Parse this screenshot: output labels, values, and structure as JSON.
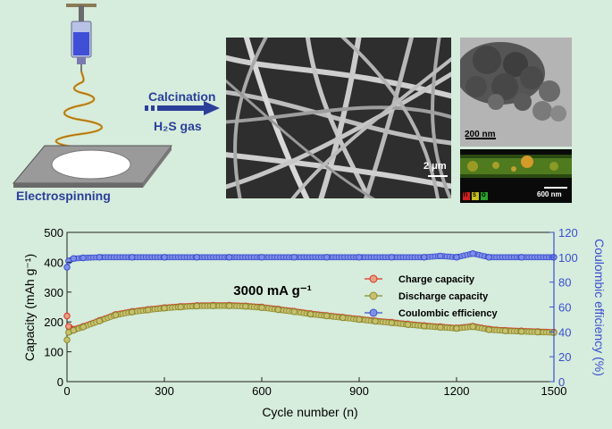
{
  "schematic": {
    "process_label": "Electrospinning",
    "arrow_label_top": "Calcination",
    "arrow_label_bottom": "H₂S gas"
  },
  "micrographs": {
    "sem_scale": "2 μm",
    "tem_scale": "200 nm",
    "eds_scale": "600 nm",
    "eds_elements": [
      "Ti",
      "S",
      "O"
    ]
  },
  "colors": {
    "background": "#d6ecdc",
    "label_blue": "#2b3f9a",
    "charge": "#d9332b",
    "discharge": "#8a8a2a",
    "coulombic": "#3a4fd0"
  },
  "chart_data": {
    "type": "line",
    "annotation": "3000 mA g⁻¹",
    "xlabel": "Cycle number (n)",
    "ylabel": "Capacity (mAh g⁻¹)",
    "y2label": "Coulombic efficiency (%)",
    "xlim": [
      0,
      1500
    ],
    "ylim": [
      0,
      500
    ],
    "y2lim": [
      0,
      120
    ],
    "xticks": [
      0,
      300,
      600,
      900,
      1200,
      1500
    ],
    "yticks": [
      0,
      100,
      200,
      300,
      400,
      500
    ],
    "y2ticks": [
      0,
      20,
      40,
      60,
      80,
      100,
      120
    ],
    "legend_position": "right",
    "series": [
      {
        "name": "Charge capacity",
        "axis": "left",
        "points": [
          [
            0,
            220
          ],
          [
            5,
            185
          ],
          [
            20,
            175
          ],
          [
            50,
            185
          ],
          [
            100,
            205
          ],
          [
            150,
            225
          ],
          [
            200,
            235
          ],
          [
            250,
            242
          ],
          [
            300,
            248
          ],
          [
            350,
            252
          ],
          [
            400,
            255
          ],
          [
            450,
            256
          ],
          [
            500,
            256
          ],
          [
            550,
            254
          ],
          [
            600,
            250
          ],
          [
            650,
            243
          ],
          [
            700,
            236
          ],
          [
            750,
            228
          ],
          [
            800,
            222
          ],
          [
            850,
            216
          ],
          [
            900,
            210
          ],
          [
            950,
            204
          ],
          [
            1000,
            199
          ],
          [
            1050,
            193
          ],
          [
            1100,
            188
          ],
          [
            1150,
            184
          ],
          [
            1200,
            180
          ],
          [
            1250,
            186
          ],
          [
            1300,
            176
          ],
          [
            1350,
            172
          ],
          [
            1400,
            170
          ],
          [
            1450,
            168
          ],
          [
            1500,
            166
          ]
        ]
      },
      {
        "name": "Discharge capacity",
        "axis": "left",
        "points": [
          [
            0,
            140
          ],
          [
            5,
            165
          ],
          [
            20,
            172
          ],
          [
            50,
            183
          ],
          [
            100,
            203
          ],
          [
            150,
            223
          ],
          [
            200,
            233
          ],
          [
            250,
            240
          ],
          [
            300,
            246
          ],
          [
            350,
            250
          ],
          [
            400,
            253
          ],
          [
            450,
            254
          ],
          [
            500,
            254
          ],
          [
            550,
            252
          ],
          [
            600,
            248
          ],
          [
            650,
            241
          ],
          [
            700,
            234
          ],
          [
            750,
            226
          ],
          [
            800,
            220
          ],
          [
            850,
            214
          ],
          [
            900,
            208
          ],
          [
            950,
            202
          ],
          [
            1000,
            197
          ],
          [
            1050,
            191
          ],
          [
            1100,
            186
          ],
          [
            1150,
            182
          ],
          [
            1200,
            178
          ],
          [
            1250,
            184
          ],
          [
            1300,
            174
          ],
          [
            1350,
            170
          ],
          [
            1400,
            168
          ],
          [
            1450,
            166
          ],
          [
            1500,
            164
          ]
        ]
      },
      {
        "name": "Coulombic efficiency",
        "axis": "right",
        "points": [
          [
            0,
            92
          ],
          [
            5,
            97
          ],
          [
            20,
            99
          ],
          [
            50,
            99.5
          ],
          [
            100,
            100
          ],
          [
            200,
            100
          ],
          [
            300,
            100
          ],
          [
            400,
            100
          ],
          [
            500,
            100
          ],
          [
            600,
            100
          ],
          [
            700,
            100
          ],
          [
            800,
            100
          ],
          [
            900,
            100
          ],
          [
            1000,
            100
          ],
          [
            1100,
            100
          ],
          [
            1150,
            101
          ],
          [
            1200,
            100
          ],
          [
            1250,
            103
          ],
          [
            1300,
            100
          ],
          [
            1400,
            100
          ],
          [
            1500,
            100
          ]
        ]
      }
    ]
  }
}
